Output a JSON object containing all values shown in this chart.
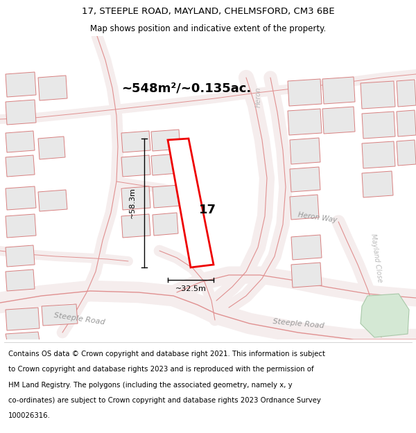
{
  "title_line1": "17, STEEPLE ROAD, MAYLAND, CHELMSFORD, CM3 6BE",
  "title_line2": "Map shows position and indicative extent of the property.",
  "area_text": "~548m²/~0.135ac.",
  "width_label": "~32.5m",
  "height_label": "~58.3m",
  "property_number": "17",
  "road_label_steeple_left": "Steeple Road",
  "road_label_steeple_right": "Steeple Road",
  "road_label_heron_way": "Heron Way",
  "road_label_heron": "Heron",
  "road_label_mayland": "Mayland Close",
  "footer_lines": [
    "Contains OS data © Crown copyright and database right 2021. This information is subject",
    "to Crown copyright and database rights 2023 and is reproduced with the permission of",
    "HM Land Registry. The polygons (including the associated geometry, namely x, y",
    "co-ordinates) are subject to Crown copyright and database rights 2023 Ordnance Survey",
    "100026316."
  ],
  "bg_color": "#ffffff",
  "map_bg": "#f8f4f4",
  "road_fill": "#f5eded",
  "road_color": "#e09090",
  "building_fill": "#e8e8e8",
  "building_stroke": "#d88080",
  "highlight_color": "#ee0000",
  "highlight_fill": "#ffffff",
  "green_color": "#d4e8d4",
  "green_stroke": "#a8c8a8"
}
